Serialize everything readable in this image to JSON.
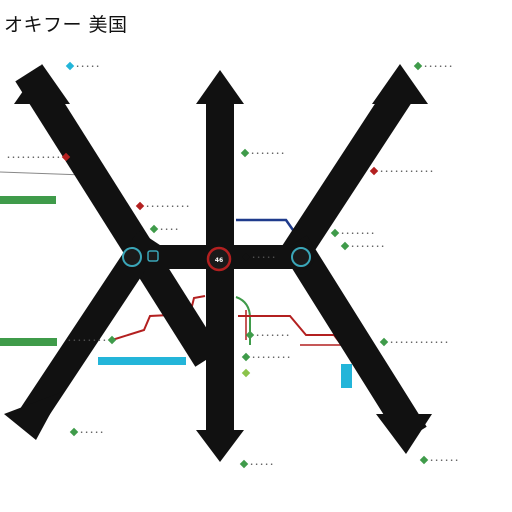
{
  "title": "オキフー 美国",
  "colors": {
    "arrow": "#111111",
    "green": "#3f9b4a",
    "light_green": "#8bc34a",
    "red": "#b32020",
    "blue": "#1f3b8c",
    "cyan": "#23b5d9",
    "node_ring": "#3aa6b8"
  },
  "hub_label": "46",
  "labels": [
    {
      "id": "top-left",
      "text": "• • • • •",
      "color": "cyan"
    },
    {
      "id": "top-right",
      "text": "• • • • • •",
      "color": "green"
    },
    {
      "id": "left-upper",
      "text": "• • • • • • • • • • •",
      "color": "red"
    },
    {
      "id": "center-upper",
      "text": "• • • • • • •",
      "color": "green"
    },
    {
      "id": "right-upper",
      "text": "• • • • • • • • • • •",
      "color": "red"
    },
    {
      "id": "mid-left",
      "text": "• • • • • • • • •",
      "color": "red"
    },
    {
      "id": "mid-left-2",
      "text": "• • • •",
      "color": "green"
    },
    {
      "id": "right-mid",
      "text": "• • • • • • •",
      "color": "green"
    },
    {
      "id": "right-mid-2",
      "text": "• • • • • • •",
      "color": "green"
    },
    {
      "id": "hub-right",
      "text": "• • • • •",
      "color": "arrow"
    },
    {
      "id": "center-lower",
      "text": "• • • • • • •",
      "color": "green"
    },
    {
      "id": "center-lower-2",
      "text": "• • • • • • • •",
      "color": "green"
    },
    {
      "id": "right-lower",
      "text": "• • • • • • • • • • • •",
      "color": "green"
    },
    {
      "id": "left-lower",
      "text": "• • • • • • • •",
      "color": "green"
    },
    {
      "id": "bottom-left",
      "text": "• • • • •",
      "color": "green"
    },
    {
      "id": "bottom-center",
      "text": "• • • • •",
      "color": "green"
    },
    {
      "id": "bottom-right",
      "text": "• • • • • •",
      "color": "green"
    }
  ]
}
